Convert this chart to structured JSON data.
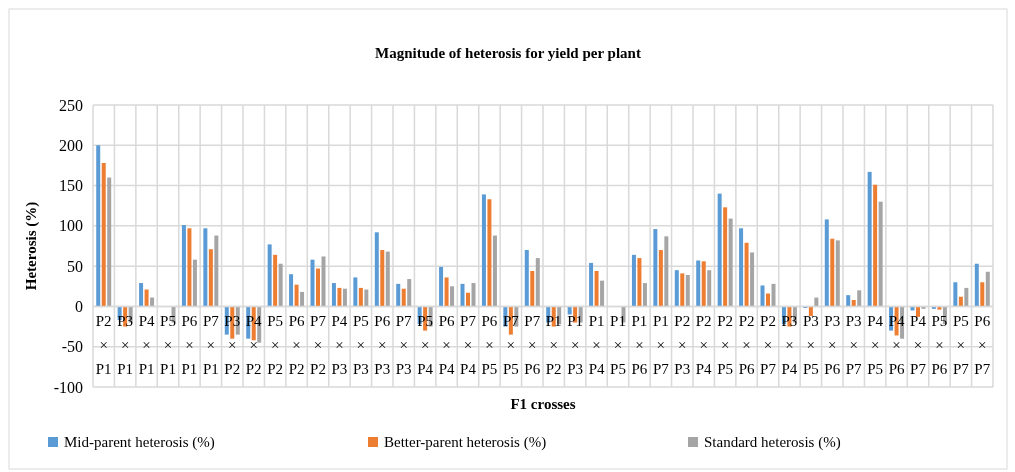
{
  "chart_data": {
    "type": "bar",
    "title": "Magnitude of heterosis for yield per plant",
    "xlabel": "F1 crosses",
    "ylabel": "Heterosis (%)",
    "categories": [
      "P2 × P1",
      "P3 × P1",
      "P4 × P1",
      "P5 × P1",
      "P6 × P1",
      "P7 × P1",
      "P3 × P2",
      "P4 × P2",
      "P5 × P2",
      "P6 × P2",
      "P7 × P2",
      "P4 × P3",
      "P5 × P3",
      "P6 × P3",
      "P7 × P3",
      "P5 × P4",
      "P6 × P4",
      "P7 × P4",
      "P6 × P5",
      "P7 × P5",
      "P7 × P6",
      "P1 × P2",
      "P1 × P3",
      "P1 × P4",
      "P1 × P5",
      "P1 × P6",
      "P1 × P7",
      "P2 × P3",
      "P2 × P4",
      "P2 × P5",
      "P2 × P6",
      "P2 × P7",
      "P3 × P4",
      "P3 × P5",
      "P3 × P6",
      "P3 × P7",
      "P4 × P5",
      "P4 × P6",
      "P4 × P7",
      "P5 × P6",
      "P5 × P7",
      "P6 × P7"
    ],
    "series": [
      {
        "name": "Mid-parent heterosis (%)",
        "color": "#5b9bd5",
        "values": [
          200,
          -17,
          29,
          0,
          101,
          97,
          -35,
          -40,
          77,
          40,
          58,
          29,
          36,
          92,
          28,
          -22,
          49,
          28,
          139,
          -25,
          70,
          -20,
          -10,
          54,
          0,
          64,
          96,
          45,
          57,
          140,
          97,
          26,
          -22,
          -2,
          108,
          14,
          167,
          -30,
          -5,
          -3,
          30,
          53
        ]
      },
      {
        "name": "Better-parent heterosis (%)",
        "color": "#ed7d31",
        "values": [
          178,
          -25,
          21,
          0,
          97,
          71,
          -40,
          -42,
          64,
          27,
          47,
          23,
          23,
          70,
          22,
          -30,
          36,
          17,
          133,
          -35,
          44,
          -25,
          -20,
          44,
          0,
          60,
          70,
          41,
          56,
          123,
          79,
          16,
          -25,
          -12,
          84,
          8,
          151,
          -36,
          -13,
          -4,
          12,
          30
        ]
      },
      {
        "name": "Standard heterosis (%)",
        "color": "#a5a5a5",
        "values": [
          160,
          -20,
          11,
          -20,
          58,
          88,
          -35,
          -45,
          53,
          18,
          62,
          22,
          21,
          68,
          34,
          -25,
          25,
          29,
          88,
          -25,
          60,
          -22,
          -20,
          32,
          -20,
          29,
          87,
          39,
          45,
          109,
          67,
          28,
          -20,
          11,
          82,
          20,
          130,
          -40,
          -3,
          -22,
          23,
          43
        ]
      }
    ],
    "ylim": [
      -100,
      250
    ],
    "yticks": [
      -100,
      -50,
      0,
      50,
      100,
      150,
      200,
      250
    ],
    "grid": true,
    "legend": "bottom"
  }
}
